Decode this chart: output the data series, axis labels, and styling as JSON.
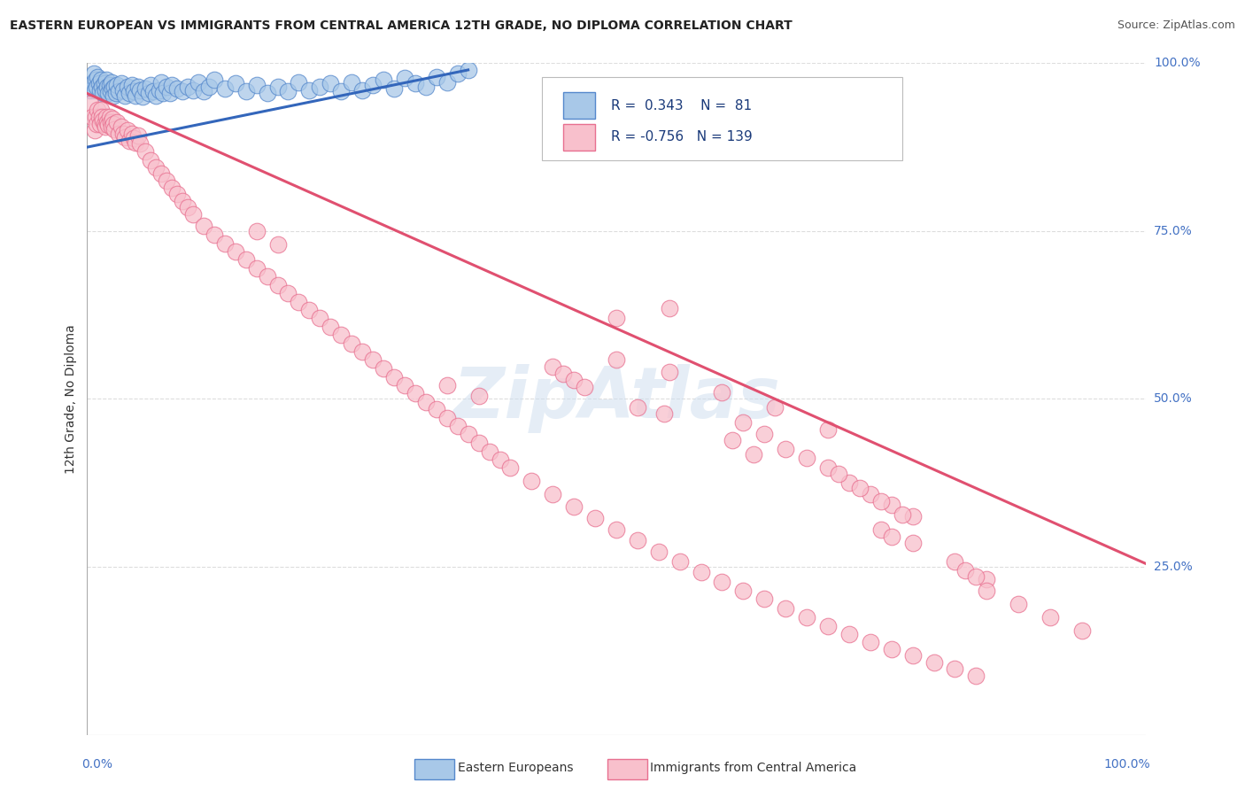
{
  "title": "EASTERN EUROPEAN VS IMMIGRANTS FROM CENTRAL AMERICA 12TH GRADE, NO DIPLOMA CORRELATION CHART",
  "source": "Source: ZipAtlas.com",
  "ylabel": "12th Grade, No Diploma",
  "xlim": [
    0,
    1
  ],
  "ylim": [
    0,
    1
  ],
  "blue_R": 0.343,
  "blue_N": 81,
  "pink_R": -0.756,
  "pink_N": 139,
  "blue_scatter_color": "#a8c8e8",
  "blue_edge_color": "#5588cc",
  "blue_line_color": "#3366bb",
  "pink_scatter_color": "#f8c0cc",
  "pink_edge_color": "#e87090",
  "pink_line_color": "#e05070",
  "background_color": "#ffffff",
  "grid_color": "#dddddd",
  "blue_line_x0": 0.0,
  "blue_line_x1": 0.36,
  "blue_line_y0": 0.875,
  "blue_line_y1": 0.99,
  "pink_line_x0": 0.0,
  "pink_line_x1": 1.0,
  "pink_line_y0": 0.955,
  "pink_line_y1": 0.255,
  "blue_points_x": [
    0.003,
    0.005,
    0.006,
    0.007,
    0.008,
    0.009,
    0.01,
    0.011,
    0.012,
    0.013,
    0.014,
    0.015,
    0.016,
    0.017,
    0.018,
    0.019,
    0.02,
    0.021,
    0.022,
    0.023,
    0.024,
    0.025,
    0.026,
    0.027,
    0.028,
    0.03,
    0.032,
    0.034,
    0.036,
    0.038,
    0.04,
    0.042,
    0.044,
    0.046,
    0.048,
    0.05,
    0.052,
    0.055,
    0.058,
    0.06,
    0.062,
    0.065,
    0.068,
    0.07,
    0.072,
    0.075,
    0.078,
    0.08,
    0.085,
    0.09,
    0.095,
    0.1,
    0.105,
    0.11,
    0.115,
    0.12,
    0.13,
    0.14,
    0.15,
    0.16,
    0.17,
    0.18,
    0.19,
    0.2,
    0.21,
    0.22,
    0.23,
    0.24,
    0.25,
    0.26,
    0.27,
    0.28,
    0.29,
    0.3,
    0.31,
    0.32,
    0.33,
    0.34,
    0.35,
    0.36
  ],
  "blue_points_y": [
    0.96,
    0.97,
    0.985,
    0.96,
    0.975,
    0.965,
    0.98,
    0.97,
    0.96,
    0.975,
    0.965,
    0.955,
    0.97,
    0.96,
    0.975,
    0.965,
    0.955,
    0.968,
    0.958,
    0.972,
    0.962,
    0.952,
    0.965,
    0.955,
    0.968,
    0.958,
    0.97,
    0.96,
    0.952,
    0.965,
    0.955,
    0.968,
    0.958,
    0.952,
    0.965,
    0.96,
    0.95,
    0.962,
    0.955,
    0.968,
    0.958,
    0.952,
    0.96,
    0.972,
    0.955,
    0.965,
    0.955,
    0.968,
    0.962,
    0.958,
    0.965,
    0.96,
    0.972,
    0.958,
    0.965,
    0.975,
    0.962,
    0.97,
    0.958,
    0.968,
    0.955,
    0.965,
    0.958,
    0.972,
    0.96,
    0.965,
    0.97,
    0.958,
    0.972,
    0.96,
    0.968,
    0.975,
    0.962,
    0.978,
    0.97,
    0.965,
    0.98,
    0.972,
    0.985,
    0.99
  ],
  "pink_points_x": [
    0.003,
    0.005,
    0.007,
    0.008,
    0.009,
    0.01,
    0.011,
    0.012,
    0.013,
    0.014,
    0.015,
    0.016,
    0.017,
    0.018,
    0.019,
    0.02,
    0.021,
    0.022,
    0.023,
    0.024,
    0.025,
    0.026,
    0.028,
    0.03,
    0.032,
    0.034,
    0.036,
    0.038,
    0.04,
    0.042,
    0.044,
    0.046,
    0.048,
    0.05,
    0.055,
    0.06,
    0.065,
    0.07,
    0.075,
    0.08,
    0.085,
    0.09,
    0.095,
    0.1,
    0.11,
    0.12,
    0.13,
    0.14,
    0.15,
    0.16,
    0.17,
    0.18,
    0.19,
    0.2,
    0.21,
    0.22,
    0.23,
    0.24,
    0.25,
    0.26,
    0.27,
    0.28,
    0.29,
    0.3,
    0.31,
    0.32,
    0.33,
    0.34,
    0.35,
    0.36,
    0.37,
    0.38,
    0.39,
    0.4,
    0.42,
    0.44,
    0.46,
    0.48,
    0.5,
    0.52,
    0.54,
    0.56,
    0.58,
    0.6,
    0.62,
    0.64,
    0.66,
    0.68,
    0.7,
    0.72,
    0.74,
    0.76,
    0.78,
    0.8,
    0.82,
    0.84,
    0.5,
    0.55,
    0.34,
    0.37,
    0.5,
    0.55,
    0.6,
    0.65,
    0.7,
    0.16,
    0.18,
    0.52,
    0.545,
    0.44,
    0.45,
    0.46,
    0.47,
    0.75,
    0.76,
    0.61,
    0.63,
    0.78,
    0.82,
    0.85,
    0.72,
    0.74,
    0.76,
    0.78,
    0.85,
    0.88,
    0.91,
    0.94,
    0.62,
    0.64,
    0.83,
    0.84,
    0.66,
    0.68,
    0.7,
    0.71,
    0.73,
    0.75,
    0.77
  ],
  "pink_points_y": [
    0.94,
    0.92,
    0.9,
    0.92,
    0.91,
    0.93,
    0.92,
    0.91,
    0.93,
    0.92,
    0.915,
    0.91,
    0.905,
    0.92,
    0.912,
    0.908,
    0.92,
    0.912,
    0.905,
    0.918,
    0.91,
    0.902,
    0.912,
    0.895,
    0.905,
    0.895,
    0.89,
    0.9,
    0.885,
    0.895,
    0.888,
    0.882,
    0.892,
    0.88,
    0.868,
    0.855,
    0.845,
    0.835,
    0.825,
    0.815,
    0.805,
    0.795,
    0.785,
    0.775,
    0.758,
    0.745,
    0.732,
    0.72,
    0.708,
    0.695,
    0.682,
    0.67,
    0.658,
    0.645,
    0.632,
    0.62,
    0.608,
    0.595,
    0.582,
    0.57,
    0.558,
    0.545,
    0.532,
    0.52,
    0.508,
    0.495,
    0.485,
    0.472,
    0.46,
    0.448,
    0.435,
    0.422,
    0.41,
    0.398,
    0.378,
    0.358,
    0.34,
    0.322,
    0.305,
    0.29,
    0.272,
    0.258,
    0.242,
    0.228,
    0.215,
    0.202,
    0.188,
    0.175,
    0.162,
    0.15,
    0.138,
    0.128,
    0.118,
    0.108,
    0.098,
    0.088,
    0.62,
    0.635,
    0.52,
    0.505,
    0.558,
    0.54,
    0.51,
    0.488,
    0.455,
    0.75,
    0.73,
    0.488,
    0.478,
    0.548,
    0.538,
    0.528,
    0.518,
    0.305,
    0.295,
    0.438,
    0.418,
    0.285,
    0.258,
    0.232,
    0.375,
    0.358,
    0.342,
    0.325,
    0.215,
    0.195,
    0.175,
    0.155,
    0.465,
    0.448,
    0.245,
    0.235,
    0.425,
    0.412,
    0.398,
    0.388,
    0.368,
    0.348,
    0.328
  ]
}
